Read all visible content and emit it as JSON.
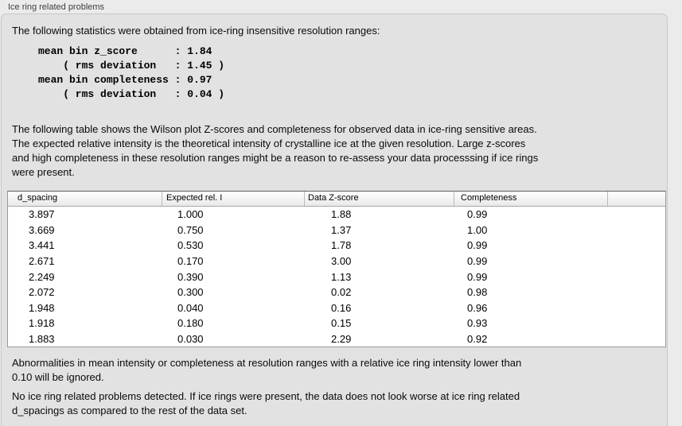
{
  "panel": {
    "title": "Ice ring related problems"
  },
  "sections": {
    "intro": "The following statistics were obtained from ice-ring insensitive resolution ranges:",
    "stats_block": "mean bin z_score      : 1.84\n    ( rms deviation   : 1.45 )\nmean bin completeness : 0.97\n    ( rms deviation   : 0.04 )",
    "stats": {
      "mean_bin_z_score": "1.84",
      "z_score_rms_deviation": "1.45",
      "mean_bin_completeness": "0.97",
      "completeness_rms_deviation": "0.04"
    },
    "description": "The following table shows the Wilson plot Z-scores and completeness for observed data in ice-ring sensitive areas.\nThe expected relative intensity is the theoretical intensity of crystalline ice at the given resolution. Large z-scores\nand high completeness in these resolution ranges might be a reason to re-assess your data processsing if ice rings\nwere present.",
    "ignore_note": "Abnormalities in mean intensity or completeness at resolution ranges with a relative ice ring intensity lower than\n0.10 will be ignored.",
    "conclusion": "No ice ring related problems detected. If ice rings were present, the data does not look worse at ice ring related\nd_spacings as compared to the rest of the data set."
  },
  "table": {
    "columns": [
      "d_spacing",
      "Expected rel. I",
      "Data Z-score",
      "Completeness",
      ""
    ],
    "rows": [
      [
        "3.897",
        "1.000",
        "1.88",
        "0.99"
      ],
      [
        "3.669",
        "0.750",
        "1.37",
        "1.00"
      ],
      [
        "3.441",
        "0.530",
        "1.78",
        "0.99"
      ],
      [
        "2.671",
        "0.170",
        "3.00",
        "0.99"
      ],
      [
        "2.249",
        "0.390",
        "1.13",
        "0.99"
      ],
      [
        "2.072",
        "0.300",
        "0.02",
        "0.98"
      ],
      [
        "1.948",
        "0.040",
        "0.16",
        "0.96"
      ],
      [
        "1.918",
        "0.180",
        "0.15",
        "0.93"
      ],
      [
        "1.883",
        "0.030",
        "2.29",
        "0.92"
      ]
    ]
  },
  "colors": {
    "page_bg": "#ebebeb",
    "panel_bg": "#e2e2e2",
    "panel_border": "#c6c6c6",
    "table_bg": "#ffffff",
    "table_border": "#9a9a9a",
    "header_gradient_top": "#ffffff",
    "header_gradient_bottom": "#e9e9e9"
  }
}
